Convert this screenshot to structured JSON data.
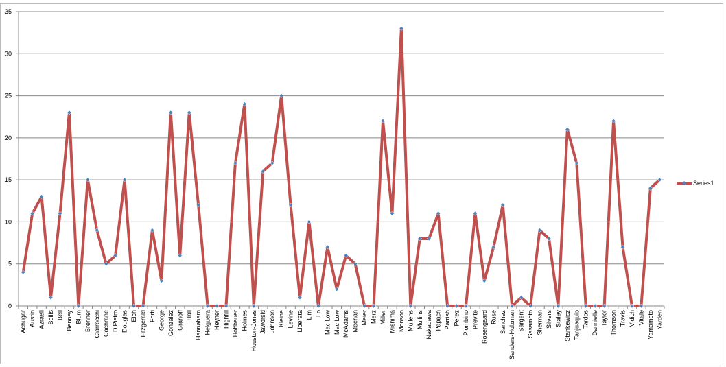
{
  "chart_data": {
    "type": "line",
    "categories": [
      "Achugar",
      "Austin",
      "Azraeli",
      "Bellis",
      "Bell",
      "Benney",
      "Blum",
      "Brenner",
      "Ciarrocchi",
      "Cochrane",
      "DiPietro",
      "Douglas",
      "Eich",
      "Fitzgerald",
      "Forti",
      "George",
      "Gonzalez",
      "Granoff",
      "Hall",
      "Hannaham",
      "Helguera",
      "Heyner",
      "Highfill",
      "Hoffbauer",
      "Holmes",
      "Houston-Jones",
      "Jaworski",
      "Johnson",
      "Kleine",
      "Levine",
      "Liberata",
      "Lim",
      "Lo",
      "Mac Low",
      "Mac Low",
      "McAdams",
      "Meehan",
      "Meier",
      "Merz",
      "Miller",
      "Mishima",
      "Monson",
      "Mullens",
      "Mullins",
      "Nakagawa",
      "Papach",
      "Parrish",
      "Perez",
      "Piombino",
      "Previte",
      "Rosengaard",
      "Ruse",
      "Sanchez",
      "Sanders-Holzman",
      "Sargent",
      "Sasamoto",
      "Sherman",
      "Silvers",
      "Staley",
      "Stankewicz",
      "Tanjuaquio",
      "Tardos",
      "Dannielle",
      "Taylor",
      "Thomson",
      "Travis",
      "Vidich",
      "Vitale",
      "Yamamoto",
      "Yarden"
    ],
    "series": [
      {
        "name": "Series1",
        "color": "#c0504d",
        "marker_color": "#4f81bd",
        "values": [
          4,
          11,
          13,
          1,
          11,
          23,
          0,
          15,
          9,
          5,
          6,
          15,
          0,
          0,
          9,
          3,
          23,
          6,
          23,
          12,
          0,
          0,
          0,
          17,
          24,
          0,
          16,
          17,
          25,
          12,
          1,
          10,
          0,
          7,
          2,
          6,
          5,
          0,
          0,
          22,
          11,
          33,
          0,
          8,
          8,
          11,
          0,
          0,
          0,
          11,
          3,
          7,
          12,
          0,
          1,
          0,
          9,
          8,
          0,
          21,
          17,
          0,
          0,
          0,
          22,
          7,
          0,
          0,
          14,
          15
        ]
      }
    ],
    "ylim": [
      0,
      35
    ],
    "yticks": [
      0,
      5,
      10,
      15,
      20,
      25,
      30,
      35
    ],
    "grid": true,
    "legend": "right"
  }
}
